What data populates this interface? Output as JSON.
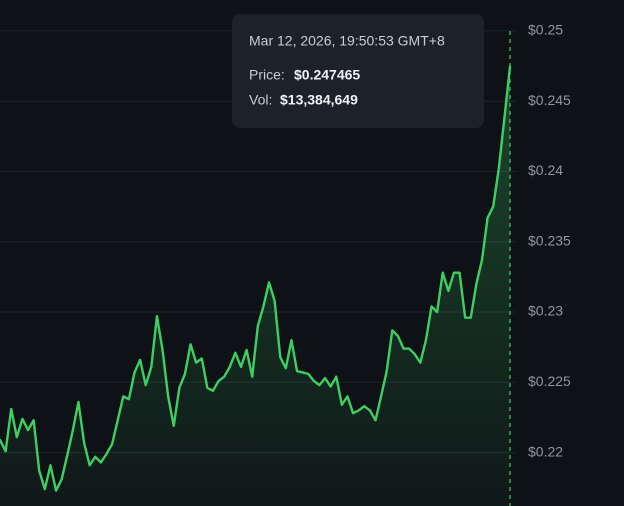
{
  "chart_data": {
    "type": "line",
    "color": "#3ecf63",
    "grid": true,
    "ylim": [
      0.2162,
      0.2522
    ],
    "yticks": [
      {
        "value": 0.22,
        "label": "$0.22"
      },
      {
        "value": 0.225,
        "label": "$0.225"
      },
      {
        "value": 0.23,
        "label": "$0.23"
      },
      {
        "value": 0.235,
        "label": "$0.235"
      },
      {
        "value": 0.24,
        "label": "$0.24"
      },
      {
        "value": 0.245,
        "label": "$0.245"
      },
      {
        "value": 0.25,
        "label": "$0.25"
      }
    ],
    "values": [
      0.2209,
      0.2201,
      0.2231,
      0.2211,
      0.2224,
      0.2216,
      0.2223,
      0.2187,
      0.2174,
      0.2191,
      0.2173,
      0.2181,
      0.2198,
      0.2216,
      0.2236,
      0.2207,
      0.2191,
      0.2197,
      0.2193,
      0.2199,
      0.2206,
      0.2223,
      0.224,
      0.2238,
      0.2257,
      0.2266,
      0.2248,
      0.2261,
      0.2297,
      0.2273,
      0.224,
      0.2219,
      0.2246,
      0.2256,
      0.2277,
      0.2264,
      0.2267,
      0.2246,
      0.2244,
      0.2251,
      0.2254,
      0.2261,
      0.2271,
      0.2261,
      0.2273,
      0.2254,
      0.229,
      0.2304,
      0.2321,
      0.2308,
      0.2268,
      0.226,
      0.228,
      0.2258,
      0.2257,
      0.2256,
      0.2251,
      0.2248,
      0.2253,
      0.2247,
      0.2254,
      0.2234,
      0.224,
      0.2228,
      0.223,
      0.2233,
      0.223,
      0.2223,
      0.224,
      0.2258,
      0.2287,
      0.2283,
      0.2274,
      0.2274,
      0.227,
      0.2264,
      0.228,
      0.2304,
      0.23,
      0.2328,
      0.2315,
      0.2328,
      0.2328,
      0.2296,
      0.2296,
      0.232,
      0.2337,
      0.2367,
      0.2375,
      0.2402,
      0.2438,
      0.247465
    ],
    "tooltip": {
      "time": "Mar 12, 2026, 19:50:53 GMT+8",
      "price_label": "Price:",
      "price": "$0.247465",
      "vol_label": "Vol:",
      "vol": "$13,384,649"
    }
  }
}
